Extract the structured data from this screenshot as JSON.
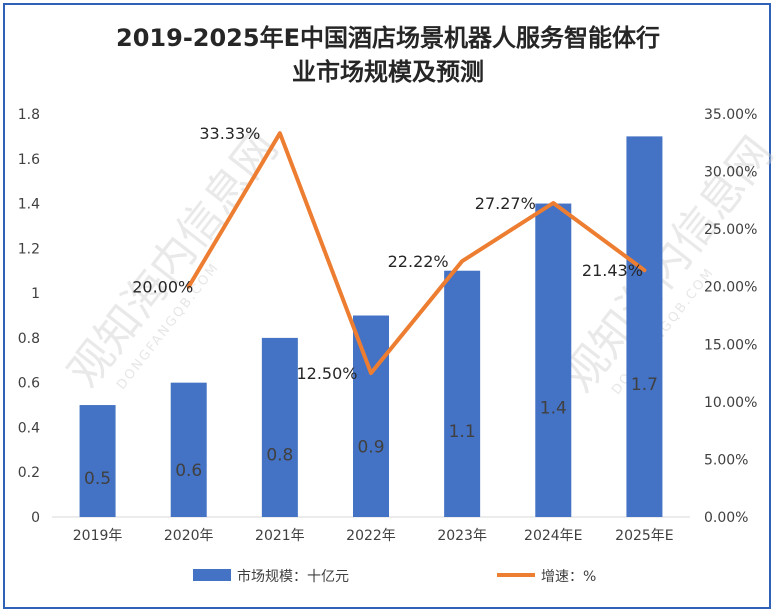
{
  "chart_data": {
    "type": "bar",
    "title_line1": "2019-2025年E中国酒店场景机器人服务智能体行",
    "title_line2": "业市场规模及预测",
    "categories": [
      "2019年",
      "2020年",
      "2021年",
      "2022年",
      "2023年",
      "2024年E",
      "2025年E"
    ],
    "series": [
      {
        "name": "市场规模：十亿元",
        "type": "bar",
        "axis": "left",
        "color": "#4472c4",
        "values": [
          0.5,
          0.6,
          0.8,
          0.9,
          1.1,
          1.4,
          1.7
        ],
        "labels": [
          "0.5",
          "0.6",
          "0.8",
          "0.9",
          "1.1",
          "1.4",
          "1.7"
        ]
      },
      {
        "name": "增速：%",
        "type": "line",
        "axis": "right",
        "color": "#ed7d31",
        "values": [
          null,
          20.0,
          33.33,
          12.5,
          22.22,
          27.27,
          21.43
        ],
        "labels": [
          "",
          "20.00%",
          "33.33%",
          "12.50%",
          "22.22%",
          "27.27%",
          "21.43%"
        ]
      }
    ],
    "y_left": {
      "min": 0,
      "max": 1.8,
      "ticks": [
        "0",
        "0.2",
        "0.4",
        "0.6",
        "0.8",
        "1",
        "1.2",
        "1.4",
        "1.6",
        "1.8"
      ]
    },
    "y_right": {
      "min": 0,
      "max": 35,
      "ticks": [
        "0.00%",
        "5.00%",
        "10.00%",
        "15.00%",
        "20.00%",
        "25.00%",
        "30.00%",
        "35.00%"
      ]
    },
    "grid": false,
    "legend": "bottom",
    "watermark": "观知海内信息网",
    "watermark_sub": "DONGFANGQB.COM"
  }
}
